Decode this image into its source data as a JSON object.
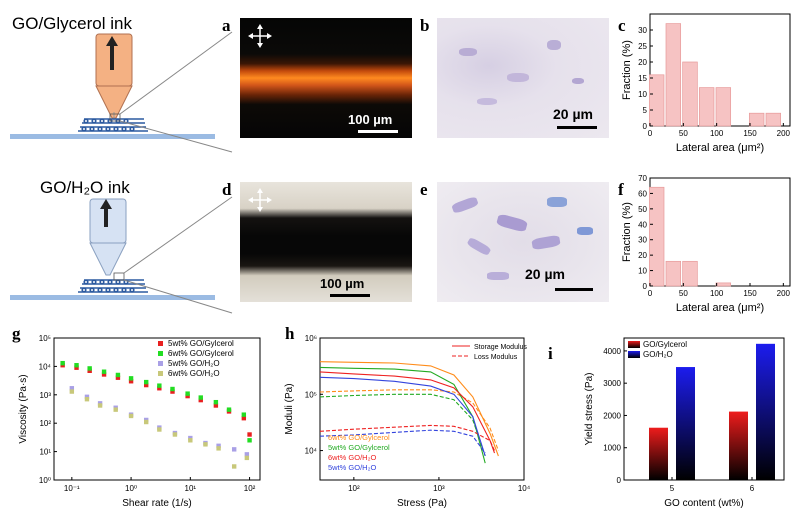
{
  "figure": {
    "row1": {
      "ink_title": "GO/Glycerol ink",
      "label_a": "a",
      "label_b": "b",
      "label_c": "c",
      "scale_a": "100 µm",
      "scale_b": "20 µm"
    },
    "row2": {
      "ink_title": "GO/H₂O ink",
      "label_d": "d",
      "label_e": "e",
      "label_f": "f",
      "scale_d": "100 µm",
      "scale_e": "20 µm"
    },
    "label_g": "g",
    "label_h": "h",
    "label_i": "i"
  },
  "chart_data": [
    {
      "id": "c",
      "type": "bar",
      "x": [
        10,
        35,
        60,
        85,
        110,
        160,
        185
      ],
      "values": [
        16,
        32,
        20,
        12,
        12,
        4,
        4
      ],
      "xlabel": "Lateral area (μm²)",
      "ylabel": "Fraction (%)",
      "xlim": [
        0,
        210
      ],
      "ylim": [
        0,
        35
      ],
      "xticks": [
        "0",
        "50",
        "100",
        "150",
        "200"
      ],
      "yticks": [
        "0",
        "5",
        "10",
        "15",
        "20",
        "25",
        "30"
      ],
      "color": "#f6c3c3"
    },
    {
      "id": "f",
      "type": "bar",
      "x": [
        10,
        35,
        60,
        110
      ],
      "values": [
        64,
        16,
        16,
        2
      ],
      "xlabel": "Lateral area (μm²)",
      "ylabel": "Fraction (%)",
      "xlim": [
        0,
        210
      ],
      "ylim": [
        0,
        70
      ],
      "xticks": [
        "0",
        "50",
        "100",
        "150",
        "200"
      ],
      "yticks": [
        "0",
        "10",
        "20",
        "30",
        "40",
        "50",
        "60",
        "70"
      ],
      "color": "#f6c3c3"
    },
    {
      "id": "g",
      "type": "scatter",
      "xlabel": "Shear rate (1/s)",
      "ylabel": "Viscosity (Pa·s)",
      "xscale": "log",
      "yscale": "log",
      "xlim": [
        0.05,
        150
      ],
      "ylim": [
        1,
        100000
      ],
      "xticks": [
        "10⁻¹",
        "10⁰",
        "10¹",
        "10²"
      ],
      "yticks": [
        "10⁰",
        "10¹",
        "10²",
        "10³",
        "10⁴",
        "10⁵"
      ],
      "legend_position": "top-right",
      "series": [
        {
          "name": "5wt% GO/Gylcerol",
          "color": "#e82020",
          "x": [
            0.07,
            0.12,
            0.2,
            0.35,
            0.6,
            1,
            1.8,
            3,
            5,
            9,
            15,
            27,
            45,
            80,
            100
          ],
          "y": [
            11000,
            9000,
            7000,
            5200,
            4000,
            3000,
            2200,
            1700,
            1300,
            900,
            650,
            420,
            260,
            150,
            40
          ]
        },
        {
          "name": "6wt% GO/Gylcerol",
          "color": "#22dd22",
          "x": [
            0.07,
            0.12,
            0.2,
            0.35,
            0.6,
            1,
            1.8,
            3,
            5,
            9,
            15,
            27,
            45,
            80,
            100
          ],
          "y": [
            13000,
            11000,
            8500,
            6500,
            5000,
            3800,
            2800,
            2100,
            1600,
            1100,
            800,
            550,
            300,
            200,
            25
          ]
        },
        {
          "name": "5wt% GO/H₂O",
          "color": "#a9a0e6",
          "x": [
            0.1,
            0.18,
            0.3,
            0.55,
            1,
            1.8,
            3,
            5.5,
            10,
            18,
            30,
            55,
            90
          ],
          "y": [
            1700,
            850,
            500,
            350,
            200,
            130,
            70,
            45,
            30,
            20,
            16,
            12,
            8
          ]
        },
        {
          "name": "6wt% GO/H₂O",
          "color": "#c8c87a",
          "x": [
            0.1,
            0.18,
            0.3,
            0.55,
            1,
            1.8,
            3,
            5.5,
            10,
            18,
            30,
            55,
            90
          ],
          "y": [
            1300,
            700,
            420,
            300,
            180,
            110,
            60,
            40,
            25,
            18,
            13,
            3,
            6
          ]
        }
      ]
    },
    {
      "id": "h",
      "type": "line",
      "xlabel": "Stress (Pa)",
      "ylabel": "Moduli (Pa)",
      "xscale": "log",
      "yscale": "log",
      "xlim": [
        40,
        10000
      ],
      "ylim": [
        3000,
        1000000
      ],
      "xticks": [
        "10²",
        "10³",
        "10⁴"
      ],
      "yticks": [
        "10⁴",
        "10⁵",
        "10⁶"
      ],
      "legend_position": "top-right",
      "style_legend": [
        {
          "name": "Storage Modulus",
          "dash": "solid"
        },
        {
          "name": "Loss Modulus",
          "dash": "dashed"
        }
      ],
      "series": [
        {
          "name": "6wt% GO/Gylcerol",
          "color": "#ff8c1a",
          "storage": {
            "x": [
              40,
              100,
              300,
              800,
              1500,
              2500,
              4000,
              5000
            ],
            "y": [
              380000,
              370000,
              360000,
              320000,
              220000,
              90000,
              20000,
              8000
            ]
          },
          "loss": {
            "x": [
              40,
              100,
              300,
              800,
              1500,
              2500,
              4000,
              5000
            ],
            "y": [
              110000,
              115000,
              120000,
              120000,
              110000,
              70000,
              25000,
              10000
            ]
          }
        },
        {
          "name": "5wt% GO/Gylcerol",
          "color": "#22aa22",
          "storage": {
            "x": [
              40,
              100,
              300,
              800,
              1500,
              2500,
              3500
            ],
            "y": [
              300000,
              290000,
              280000,
              250000,
              150000,
              40000,
              6000
            ]
          },
          "loss": {
            "x": [
              40,
              100,
              300,
              800,
              1500,
              2500,
              3500
            ],
            "y": [
              90000,
              95000,
              100000,
              100000,
              80000,
              35000,
              8000
            ]
          }
        },
        {
          "name": "6wt% GO/H₂O",
          "color": "#ee2222",
          "storage": {
            "x": [
              40,
              100,
              300,
              800,
              1500,
              2500,
              4000,
              4500
            ],
            "y": [
              250000,
              230000,
              210000,
              180000,
              130000,
              60000,
              15000,
              9000
            ]
          },
          "loss": {
            "x": [
              40,
              100,
              300,
              800,
              1500,
              2500,
              4000,
              4500
            ],
            "y": [
              22000,
              24000,
              26000,
              28000,
              27000,
              22000,
              15000,
              10000
            ]
          }
        },
        {
          "name": "5wt% GO/H₂O",
          "color": "#3344dd",
          "storage": {
            "x": [
              40,
              100,
              300,
              800,
              1500,
              2500,
              3500
            ],
            "y": [
              200000,
              190000,
              170000,
              140000,
              100000,
              40000,
              8000
            ]
          },
          "loss": {
            "x": [
              40,
              100,
              300,
              800,
              1500,
              2500,
              3500
            ],
            "y": [
              18000,
              19000,
              21000,
              23000,
              22000,
              18000,
              9000
            ]
          }
        }
      ]
    },
    {
      "id": "i",
      "type": "bar",
      "categories": [
        "5",
        "6"
      ],
      "xlabel": "GO content (wt%)",
      "ylabel": "Yield stress (Pa)",
      "ylim": [
        0,
        4400
      ],
      "yticks": [
        "0",
        "1000",
        "2000",
        "3000",
        "4000"
      ],
      "legend_position": "top-left",
      "series": [
        {
          "name": "GO/Gylcerol",
          "color": "#ee1c1c",
          "values": [
            1620,
            2120
          ]
        },
        {
          "name": "GO/H₂O",
          "color": "#1c1cee",
          "values": [
            3500,
            4220
          ]
        }
      ]
    }
  ]
}
